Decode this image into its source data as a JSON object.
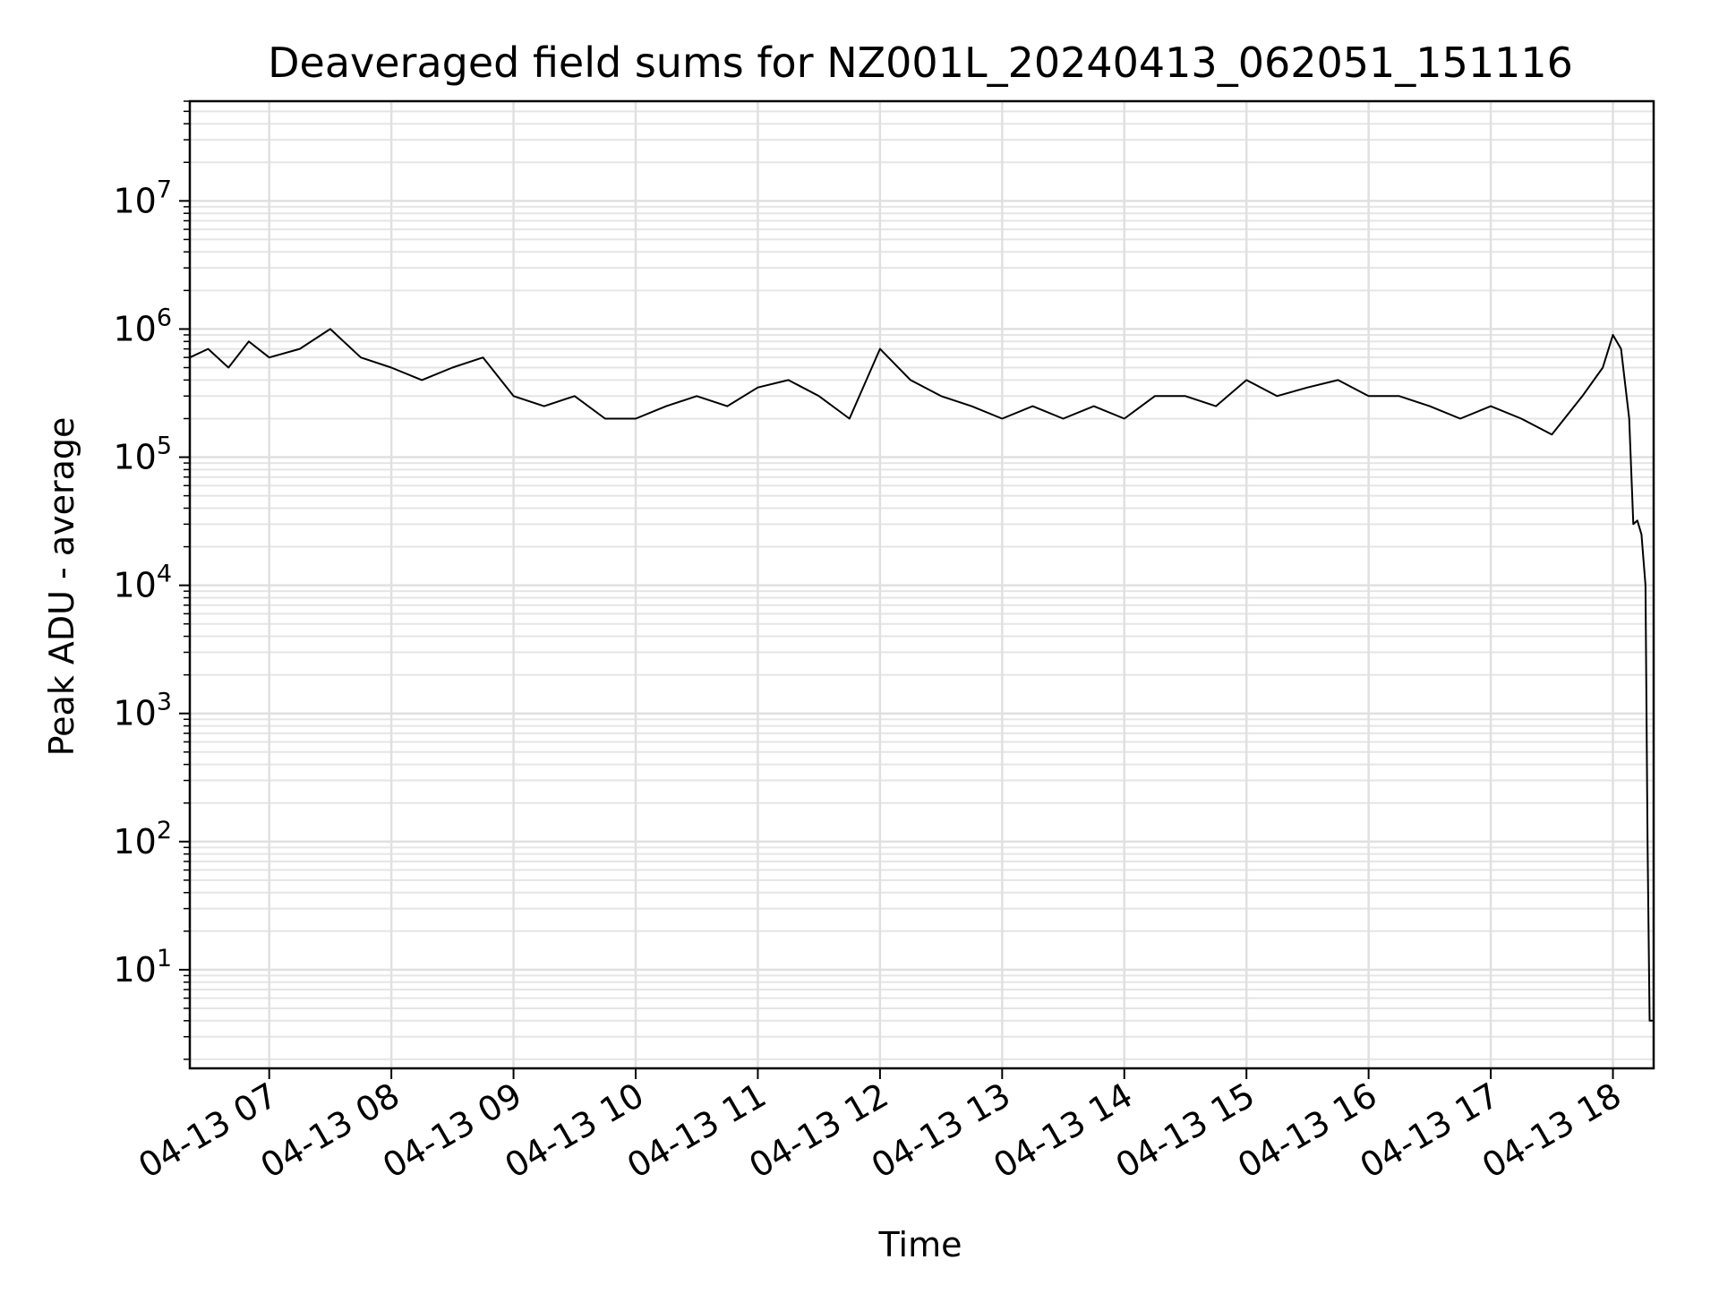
{
  "chart_data": {
    "type": "line",
    "title": "Deaveraged field sums for NZ001L_20240413_062051_151116",
    "xlabel": "Time",
    "ylabel": "Peak ADU - average",
    "yscale": "log",
    "ylim": [
      1.7,
      60000000
    ],
    "xlim": [
      "2024-04-13 06:21",
      "2024-04-13 18:20"
    ],
    "grid": true,
    "x_tick_labels": [
      "04-13 07",
      "04-13 08",
      "04-13 09",
      "04-13 10",
      "04-13 11",
      "04-13 12",
      "04-13 13",
      "04-13 14",
      "04-13 15",
      "04-13 16",
      "04-13 17",
      "04-13 18"
    ],
    "y_tick_labels": [
      {
        "base": "10",
        "exp": "1"
      },
      {
        "base": "10",
        "exp": "2"
      },
      {
        "base": "10",
        "exp": "3"
      },
      {
        "base": "10",
        "exp": "4"
      },
      {
        "base": "10",
        "exp": "5"
      },
      {
        "base": "10",
        "exp": "6"
      },
      {
        "base": "10",
        "exp": "7"
      }
    ],
    "series": [
      {
        "color": "#000000",
        "x": [
          "2024-04-13 06:21",
          "2024-04-13 06:30",
          "2024-04-13 06:40",
          "2024-04-13 06:50",
          "2024-04-13 07:00",
          "2024-04-13 07:15",
          "2024-04-13 07:30",
          "2024-04-13 07:45",
          "2024-04-13 08:00",
          "2024-04-13 08:15",
          "2024-04-13 08:30",
          "2024-04-13 08:45",
          "2024-04-13 09:00",
          "2024-04-13 09:15",
          "2024-04-13 09:30",
          "2024-04-13 09:45",
          "2024-04-13 10:00",
          "2024-04-13 10:15",
          "2024-04-13 10:30",
          "2024-04-13 10:45",
          "2024-04-13 11:00",
          "2024-04-13 11:15",
          "2024-04-13 11:30",
          "2024-04-13 11:45",
          "2024-04-13 12:00",
          "2024-04-13 12:15",
          "2024-04-13 12:30",
          "2024-04-13 12:45",
          "2024-04-13 13:00",
          "2024-04-13 13:15",
          "2024-04-13 13:30",
          "2024-04-13 13:45",
          "2024-04-13 14:00",
          "2024-04-13 14:15",
          "2024-04-13 14:30",
          "2024-04-13 14:45",
          "2024-04-13 15:00",
          "2024-04-13 15:15",
          "2024-04-13 15:30",
          "2024-04-13 15:45",
          "2024-04-13 16:00",
          "2024-04-13 16:15",
          "2024-04-13 16:30",
          "2024-04-13 16:45",
          "2024-04-13 17:00",
          "2024-04-13 17:15",
          "2024-04-13 17:30",
          "2024-04-13 17:45",
          "2024-04-13 17:55",
          "2024-04-13 18:00",
          "2024-04-13 18:04",
          "2024-04-13 18:08",
          "2024-04-13 18:10",
          "2024-04-13 18:12",
          "2024-04-13 18:14",
          "2024-04-13 18:16",
          "2024-04-13 18:17",
          "2024-04-13 18:18",
          "2024-04-13 18:20"
        ],
        "y": [
          600000,
          700000,
          500000,
          800000,
          600000,
          700000,
          1000000,
          600000,
          500000,
          400000,
          500000,
          600000,
          300000,
          250000,
          300000,
          200000,
          200000,
          250000,
          300000,
          250000,
          350000,
          400000,
          300000,
          200000,
          700000,
          400000,
          300000,
          250000,
          200000,
          250000,
          200000,
          250000,
          200000,
          300000,
          300000,
          250000,
          400000,
          300000,
          350000,
          400000,
          300000,
          300000,
          250000,
          200000,
          250000,
          200000,
          150000,
          300000,
          500000,
          900000,
          700000,
          200000,
          30000,
          32000,
          25000,
          10000,
          100,
          4,
          4
        ]
      }
    ]
  }
}
